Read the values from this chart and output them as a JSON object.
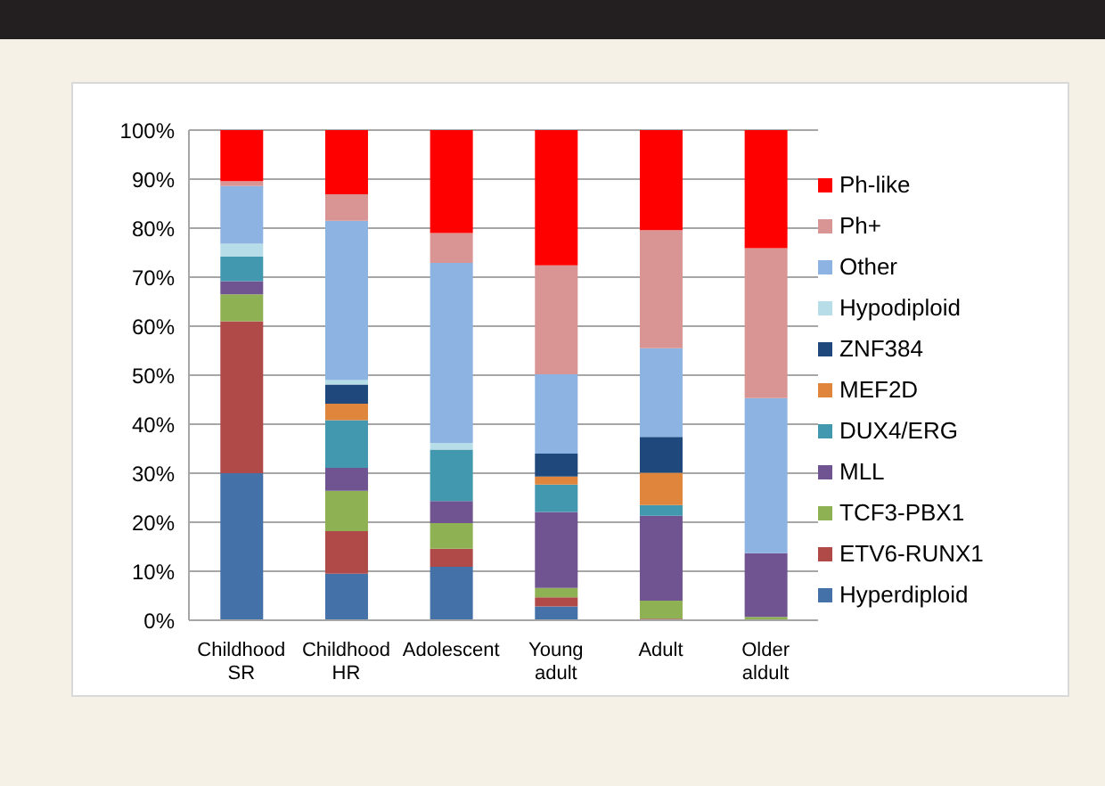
{
  "chart_data": {
    "type": "bar",
    "stacked": true,
    "categories": [
      "Childhood SR",
      "Childhood HR",
      "Adolescent",
      "Young adult",
      "Adult",
      "Older aldult"
    ],
    "series": [
      {
        "name": "Hyperdiploid",
        "color": "#4472a8",
        "values": [
          30,
          9.5,
          10.9,
          2.8,
          0,
          0
        ]
      },
      {
        "name": "ETV6-RUNX1",
        "color": "#b04a49",
        "values": [
          31,
          8.7,
          3.7,
          1.9,
          0.3,
          0
        ]
      },
      {
        "name": "TCF3-PBX1",
        "color": "#8eb153",
        "values": [
          5.5,
          8.2,
          5.2,
          1.9,
          3.7,
          0.7
        ]
      },
      {
        "name": "MLL",
        "color": "#6f5491",
        "values": [
          2.7,
          4.7,
          4.5,
          15.5,
          17.3,
          13
        ]
      },
      {
        "name": "DUX4/ERG",
        "color": "#4198af",
        "values": [
          5,
          9.7,
          10.5,
          5.6,
          2.2,
          0
        ]
      },
      {
        "name": "MEF2D",
        "color": "#e0853c",
        "values": [
          0,
          3.4,
          0,
          1.6,
          6.6,
          0
        ]
      },
      {
        "name": "ZNF384",
        "color": "#1f497d",
        "values": [
          0,
          3.9,
          0,
          4.7,
          7.3,
          0
        ]
      },
      {
        "name": "Hypodiploid",
        "color": "#b7dee8",
        "values": [
          2.6,
          0.9,
          1.4,
          0,
          0,
          0
        ]
      },
      {
        "name": "Other",
        "color": "#8db3e2",
        "values": [
          11.8,
          32.5,
          36.7,
          16.2,
          18.1,
          31.6
        ]
      },
      {
        "name": "Ph+",
        "color": "#d99594",
        "values": [
          1,
          5.4,
          6.1,
          22.2,
          24.1,
          30.6
        ]
      },
      {
        "name": "Ph-like",
        "color": "#ff0000",
        "values": [
          10.5,
          13.1,
          21,
          27.6,
          20.4,
          24.1
        ]
      }
    ],
    "ylim": [
      0,
      100
    ],
    "yticks": [
      {
        "value": 0,
        "label": "0%"
      },
      {
        "value": 10,
        "label": "10%"
      },
      {
        "value": 20,
        "label": "20%"
      },
      {
        "value": 30,
        "label": "30%"
      },
      {
        "value": 40,
        "label": "40%"
      },
      {
        "value": 50,
        "label": "50%"
      },
      {
        "value": 60,
        "label": "60%"
      },
      {
        "value": 70,
        "label": "70%"
      },
      {
        "value": 80,
        "label": "80%"
      },
      {
        "value": 90,
        "label": "90%"
      },
      {
        "value": 100,
        "label": "100%"
      }
    ],
    "grid": "y",
    "legend": "right"
  }
}
